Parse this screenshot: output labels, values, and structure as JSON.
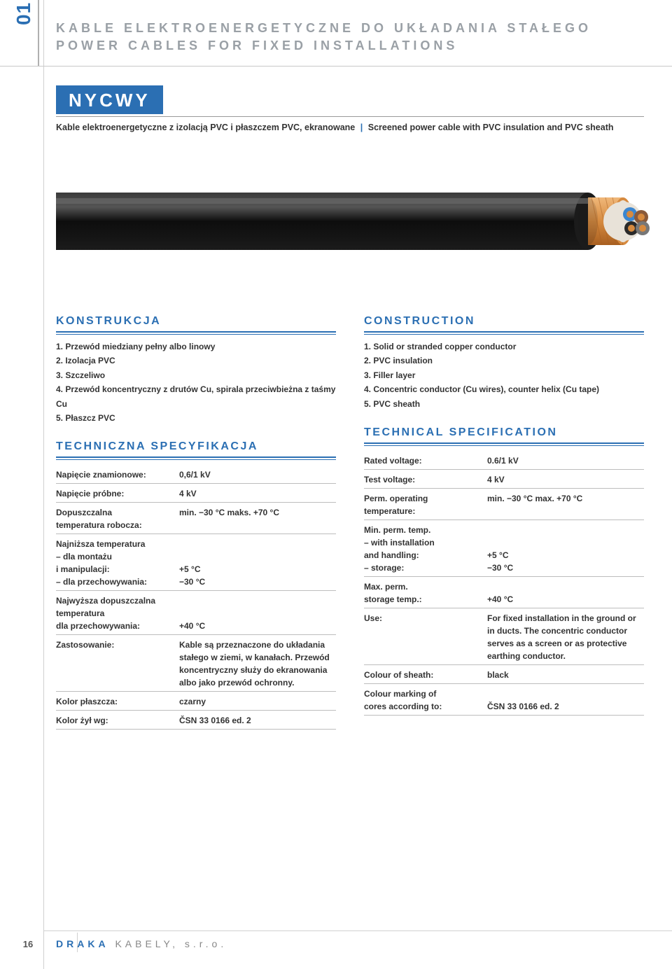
{
  "side_tab": "01",
  "header": {
    "line1": "KABLE ELEKTROENERGETYCZNE DO UKŁADANIA STAŁEGO",
    "line2": "POWER CABLES FOR FIXED INSTALLATIONS"
  },
  "product": {
    "name": "NYCWY",
    "desc_pl": "Kable elektroenergetyczne z izolacją PVC i płaszczem PVC, ekranowane",
    "desc_en": "Screened power cable with PVC insulation and PVC sheath"
  },
  "cable_colors": {
    "sheath": "#1b1b1b",
    "inner_tape": "#d68a3f",
    "core_blue": "#3a86d0",
    "core_brown": "#8a5a3a",
    "core_black": "#2a2a2a",
    "core_grey": "#888888",
    "highlight": "#f4f4f4"
  },
  "left": {
    "konstrukcja_title": "KONSTRUKCJA",
    "konstrukcja": [
      "1. Przewód miedziany pełny albo linowy",
      "2. Izolacja PVC",
      "3. Szczeliwo",
      "4. Przewód koncentryczny z drutów Cu, spirala przeciwbieżna z taśmy Cu",
      "5. Płaszcz PVC"
    ],
    "tech_title": "TECHNICZNA SPECYFIKACJA",
    "specs": [
      {
        "label": "Napięcie znamionowe:",
        "value": "0,6/1 kV"
      },
      {
        "label": "Napięcie próbne:",
        "value": "4 kV"
      },
      {
        "label": "Dopuszczalna\ntemperatura robocza:",
        "value": "min. −30 °C  maks. +70 °C"
      },
      {
        "label": "Najniższa temperatura\n– dla montażu\n  i manipulacji:\n– dla przechowywania:",
        "value": "\n\n+5 °C\n−30 °C"
      },
      {
        "label": "Najwyższa dopuszczalna\ntemperatura\ndla przechowywania:",
        "value": "\n\n+40 °C"
      },
      {
        "label": "Zastosowanie:",
        "value": "Kable są przeznaczone do układania stałego w ziemi, w kanałach. Przewód koncentryczny służy do ekranowania albo jako przewód ochronny."
      },
      {
        "label": "Kolor płaszcza:",
        "value": "czarny"
      },
      {
        "label": "Kolor żył wg:",
        "value": "ČSN 33 0166 ed. 2"
      }
    ]
  },
  "right": {
    "construction_title": "CONSTRUCTION",
    "construction": [
      "1. Solid or stranded copper conductor",
      "2. PVC insulation",
      "3. Filler layer",
      "4. Concentric conductor (Cu wires), counter helix (Cu tape)",
      "5. PVC sheath"
    ],
    "tech_title": "TECHNICAL SPECIFICATION",
    "specs": [
      {
        "label": "Rated voltage:",
        "value": "0.6/1 kV"
      },
      {
        "label": "Test voltage:",
        "value": "4 kV"
      },
      {
        "label": "Perm. operating\ntemperature:",
        "value": "min. −30 °C  max. +70 °C"
      },
      {
        "label": "Min. perm. temp.\n– with installation\n  and handling:\n– storage:",
        "value": "\n\n+5 °C\n−30 °C"
      },
      {
        "label": "Max. perm.\nstorage temp.:",
        "value": "\n+40 °C"
      },
      {
        "label": "Use:",
        "value": "For fixed installation in the ground or in ducts. The concentric conductor serves as a screen or as protective earthing conductor."
      },
      {
        "label": "Colour of sheath:",
        "value": "black"
      },
      {
        "label": "Colour marking of\ncores according to:",
        "value": "\nČSN 33 0166 ed. 2"
      }
    ]
  },
  "footer": {
    "page": "16",
    "brand1": "DRAKA",
    "brand2": " KABELY, s.r.o."
  },
  "styling": {
    "accent": "#2b6fb3",
    "muted_text": "#9aa0a6",
    "rule": "#bdbdbd",
    "body_text": "#333333",
    "page_bg": "#ffffff"
  }
}
